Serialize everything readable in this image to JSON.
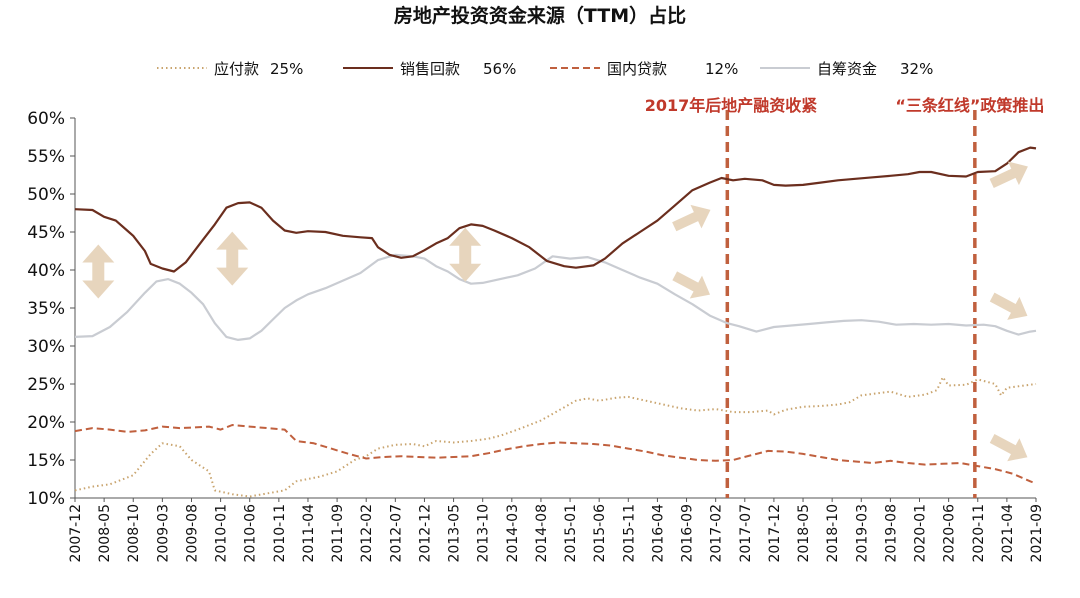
{
  "chart_data": {
    "type": "line",
    "title": "房地产投资资金来源（TTM）占比",
    "xlabel": "",
    "ylabel": "",
    "ylim": [
      10,
      60
    ],
    "y_ticks": [
      "10%",
      "15%",
      "20%",
      "25%",
      "30%",
      "35%",
      "40%",
      "45%",
      "50%",
      "55%",
      "60%"
    ],
    "x_ticks": [
      "2007-12",
      "2008-05",
      "2008-10",
      "2009-03",
      "2009-08",
      "2010-01",
      "2010-06",
      "2010-11",
      "2011-04",
      "2011-09",
      "2012-02",
      "2012-07",
      "2012-12",
      "2013-05",
      "2013-10",
      "2014-03",
      "2014-08",
      "2015-01",
      "2015-06",
      "2015-11",
      "2016-04",
      "2016-09",
      "2017-02",
      "2017-07",
      "2017-12",
      "2018-05",
      "2018-10",
      "2019-03",
      "2019-08",
      "2020-01",
      "2020-06",
      "2020-11",
      "2021-04",
      "2021-09"
    ],
    "x_tick_values": [
      0,
      5,
      10,
      15,
      20,
      25,
      30,
      35,
      40,
      45,
      50,
      55,
      60,
      65,
      70,
      75,
      80,
      85,
      90,
      95,
      100,
      105,
      110,
      115,
      120,
      125,
      130,
      135,
      140,
      145,
      150,
      155,
      160,
      165
    ],
    "x_unit": "months since 2007-12",
    "grid": false,
    "legend_position": "top",
    "series": [
      {
        "name": "应付款",
        "legend_value": "25%",
        "color": "#c9a46e",
        "style": "dotted",
        "points": [
          [
            0,
            11
          ],
          [
            3,
            11.5
          ],
          [
            6,
            11.8
          ],
          [
            10,
            13
          ],
          [
            13,
            15.8
          ],
          [
            15,
            17.2
          ],
          [
            18,
            16.8
          ],
          [
            20,
            15
          ],
          [
            23,
            13.5
          ],
          [
            24,
            11
          ],
          [
            27,
            10.5
          ],
          [
            30,
            10.2
          ],
          [
            33,
            10.6
          ],
          [
            36,
            11
          ],
          [
            38,
            12.2
          ],
          [
            42,
            12.8
          ],
          [
            45,
            13.5
          ],
          [
            48,
            15
          ],
          [
            50,
            15.5
          ],
          [
            52,
            16.5
          ],
          [
            55,
            17
          ],
          [
            58,
            17.1
          ],
          [
            60,
            16.8
          ],
          [
            62,
            17.5
          ],
          [
            65,
            17.3
          ],
          [
            68,
            17.5
          ],
          [
            71,
            17.8
          ],
          [
            73,
            18.2
          ],
          [
            76,
            19
          ],
          [
            80,
            20.2
          ],
          [
            83,
            21.5
          ],
          [
            86,
            22.8
          ],
          [
            88,
            23.1
          ],
          [
            90,
            22.8
          ],
          [
            93,
            23.2
          ],
          [
            95,
            23.3
          ],
          [
            98,
            22.8
          ],
          [
            101,
            22.3
          ],
          [
            104,
            21.8
          ],
          [
            107,
            21.5
          ],
          [
            110,
            21.7
          ],
          [
            113,
            21.3
          ],
          [
            116,
            21.3
          ],
          [
            119,
            21.5
          ],
          [
            120,
            21
          ],
          [
            122,
            21.6
          ],
          [
            125,
            22
          ],
          [
            128,
            22.1
          ],
          [
            131,
            22.3
          ],
          [
            133,
            22.6
          ],
          [
            135,
            23.5
          ],
          [
            138,
            23.8
          ],
          [
            140,
            24
          ],
          [
            143,
            23.3
          ],
          [
            146,
            23.6
          ],
          [
            148,
            24.2
          ],
          [
            149,
            25.9
          ],
          [
            150,
            24.8
          ],
          [
            153,
            24.9
          ],
          [
            155,
            25.6
          ],
          [
            158,
            25
          ],
          [
            159,
            23.5
          ],
          [
            160,
            24.5
          ],
          [
            163,
            24.8
          ],
          [
            165,
            25
          ]
        ]
      },
      {
        "name": "销售回款",
        "legend_value": "56%",
        "color": "#6b2e1e",
        "style": "solid",
        "points": [
          [
            0,
            48
          ],
          [
            3,
            47.9
          ],
          [
            5,
            47
          ],
          [
            7,
            46.5
          ],
          [
            10,
            44.5
          ],
          [
            12,
            42.5
          ],
          [
            13,
            40.8
          ],
          [
            15,
            40.2
          ],
          [
            17,
            39.8
          ],
          [
            19,
            41
          ],
          [
            22,
            44
          ],
          [
            24,
            46
          ],
          [
            26,
            48.2
          ],
          [
            28,
            48.8
          ],
          [
            30,
            48.9
          ],
          [
            32,
            48.2
          ],
          [
            34,
            46.5
          ],
          [
            36,
            45.2
          ],
          [
            38,
            44.9
          ],
          [
            40,
            45.1
          ],
          [
            43,
            45
          ],
          [
            46,
            44.5
          ],
          [
            49,
            44.3
          ],
          [
            51,
            44.2
          ],
          [
            52,
            43
          ],
          [
            54,
            42
          ],
          [
            56,
            41.6
          ],
          [
            58,
            41.8
          ],
          [
            60,
            42.6
          ],
          [
            62,
            43.5
          ],
          [
            64,
            44.2
          ],
          [
            66,
            45.5
          ],
          [
            68,
            46
          ],
          [
            70,
            45.8
          ],
          [
            72,
            45.2
          ],
          [
            75,
            44.2
          ],
          [
            78,
            43
          ],
          [
            81,
            41.2
          ],
          [
            84,
            40.5
          ],
          [
            86,
            40.3
          ],
          [
            89,
            40.6
          ],
          [
            91,
            41.5
          ],
          [
            94,
            43.5
          ],
          [
            97,
            45
          ],
          [
            100,
            46.5
          ],
          [
            103,
            48.5
          ],
          [
            106,
            50.5
          ],
          [
            109,
            51.5
          ],
          [
            111,
            52.1
          ],
          [
            113,
            51.8
          ],
          [
            115,
            52
          ],
          [
            118,
            51.8
          ],
          [
            120,
            51.2
          ],
          [
            122,
            51.1
          ],
          [
            125,
            51.2
          ],
          [
            128,
            51.5
          ],
          [
            131,
            51.8
          ],
          [
            134,
            52
          ],
          [
            137,
            52.2
          ],
          [
            140,
            52.4
          ],
          [
            143,
            52.6
          ],
          [
            145,
            52.9
          ],
          [
            147,
            52.9
          ],
          [
            150,
            52.4
          ],
          [
            153,
            52.3
          ],
          [
            155,
            52.9
          ],
          [
            158,
            53
          ],
          [
            160,
            54
          ],
          [
            162,
            55.5
          ],
          [
            164,
            56.1
          ],
          [
            165,
            56
          ]
        ]
      },
      {
        "name": "国内贷款",
        "legend_value": "12%",
        "color": "#c0603e",
        "style": "dashed",
        "points": [
          [
            0,
            18.8
          ],
          [
            3,
            19.2
          ],
          [
            6,
            19
          ],
          [
            9,
            18.7
          ],
          [
            12,
            18.9
          ],
          [
            15,
            19.4
          ],
          [
            18,
            19.2
          ],
          [
            21,
            19.3
          ],
          [
            23,
            19.4
          ],
          [
            25,
            19
          ],
          [
            27,
            19.6
          ],
          [
            30,
            19.4
          ],
          [
            33,
            19.2
          ],
          [
            36,
            19
          ],
          [
            38,
            17.5
          ],
          [
            41,
            17.2
          ],
          [
            44,
            16.5
          ],
          [
            47,
            15.8
          ],
          [
            50,
            15.2
          ],
          [
            53,
            15.4
          ],
          [
            56,
            15.5
          ],
          [
            59,
            15.4
          ],
          [
            62,
            15.3
          ],
          [
            65,
            15.4
          ],
          [
            68,
            15.5
          ],
          [
            71,
            15.9
          ],
          [
            74,
            16.4
          ],
          [
            77,
            16.8
          ],
          [
            80,
            17.1
          ],
          [
            83,
            17.3
          ],
          [
            86,
            17.2
          ],
          [
            89,
            17.1
          ],
          [
            92,
            16.9
          ],
          [
            95,
            16.5
          ],
          [
            98,
            16.1
          ],
          [
            101,
            15.6
          ],
          [
            104,
            15.3
          ],
          [
            107,
            15
          ],
          [
            110,
            14.9
          ],
          [
            113,
            15
          ],
          [
            116,
            15.6
          ],
          [
            119,
            16.2
          ],
          [
            122,
            16.1
          ],
          [
            125,
            15.8
          ],
          [
            128,
            15.4
          ],
          [
            131,
            15
          ],
          [
            134,
            14.8
          ],
          [
            137,
            14.6
          ],
          [
            140,
            14.9
          ],
          [
            143,
            14.6
          ],
          [
            146,
            14.4
          ],
          [
            149,
            14.5
          ],
          [
            152,
            14.6
          ],
          [
            155,
            14.2
          ],
          [
            158,
            13.8
          ],
          [
            161,
            13.2
          ],
          [
            164,
            12.2
          ],
          [
            165,
            11.9
          ]
        ]
      },
      {
        "name": "自筹资金",
        "legend_value": "32%",
        "color": "#c9ccd2",
        "style": "solid",
        "points": [
          [
            0,
            31.2
          ],
          [
            3,
            31.3
          ],
          [
            6,
            32.5
          ],
          [
            9,
            34.5
          ],
          [
            12,
            37
          ],
          [
            14,
            38.5
          ],
          [
            16,
            38.8
          ],
          [
            18,
            38.2
          ],
          [
            20,
            37
          ],
          [
            22,
            35.5
          ],
          [
            24,
            33
          ],
          [
            26,
            31.2
          ],
          [
            28,
            30.8
          ],
          [
            30,
            31
          ],
          [
            32,
            32
          ],
          [
            34,
            33.5
          ],
          [
            36,
            35
          ],
          [
            38,
            36
          ],
          [
            40,
            36.8
          ],
          [
            43,
            37.6
          ],
          [
            46,
            38.6
          ],
          [
            49,
            39.6
          ],
          [
            52,
            41.3
          ],
          [
            55,
            42
          ],
          [
            58,
            41.8
          ],
          [
            60,
            41.5
          ],
          [
            62,
            40.5
          ],
          [
            64,
            39.8
          ],
          [
            66,
            38.8
          ],
          [
            68,
            38.2
          ],
          [
            70,
            38.3
          ],
          [
            73,
            38.8
          ],
          [
            76,
            39.3
          ],
          [
            79,
            40.2
          ],
          [
            82,
            41.8
          ],
          [
            85,
            41.5
          ],
          [
            88,
            41.7
          ],
          [
            91,
            41
          ],
          [
            94,
            40
          ],
          [
            97,
            39
          ],
          [
            100,
            38.2
          ],
          [
            103,
            36.8
          ],
          [
            106,
            35.5
          ],
          [
            109,
            34
          ],
          [
            112,
            33
          ],
          [
            114,
            32.6
          ],
          [
            117,
            31.9
          ],
          [
            120,
            32.5
          ],
          [
            123,
            32.7
          ],
          [
            126,
            32.9
          ],
          [
            129,
            33.1
          ],
          [
            132,
            33.3
          ],
          [
            135,
            33.4
          ],
          [
            138,
            33.2
          ],
          [
            141,
            32.8
          ],
          [
            144,
            32.9
          ],
          [
            147,
            32.8
          ],
          [
            150,
            32.9
          ],
          [
            153,
            32.7
          ],
          [
            156,
            32.8
          ],
          [
            158,
            32.6
          ],
          [
            160,
            32
          ],
          [
            162,
            31.5
          ],
          [
            164,
            31.9
          ],
          [
            165,
            32
          ]
        ]
      }
    ],
    "vertical_lines": [
      {
        "x": 112,
        "color": "#c0603e",
        "label": "2017年后地产融资收紧"
      },
      {
        "x": 154.5,
        "color": "#c0603e",
        "label": "“三条红线”政策推出"
      }
    ],
    "markers": [
      {
        "type": "double-arrow-vertical",
        "x": 4,
        "y": 39.8
      },
      {
        "type": "double-arrow-vertical",
        "x": 27,
        "y": 41.5
      },
      {
        "type": "double-arrow-vertical",
        "x": 67,
        "y": 42
      },
      {
        "type": "arrow-up-right",
        "x": 106,
        "y": 46.8
      },
      {
        "type": "arrow-down-right",
        "x": 106,
        "y": 38
      },
      {
        "type": "arrow-up-right",
        "x": 160.5,
        "y": 52.5
      },
      {
        "type": "arrow-down-right",
        "x": 160.5,
        "y": 35.2
      },
      {
        "type": "arrow-down-right",
        "x": 160.5,
        "y": 16.6
      }
    ]
  }
}
